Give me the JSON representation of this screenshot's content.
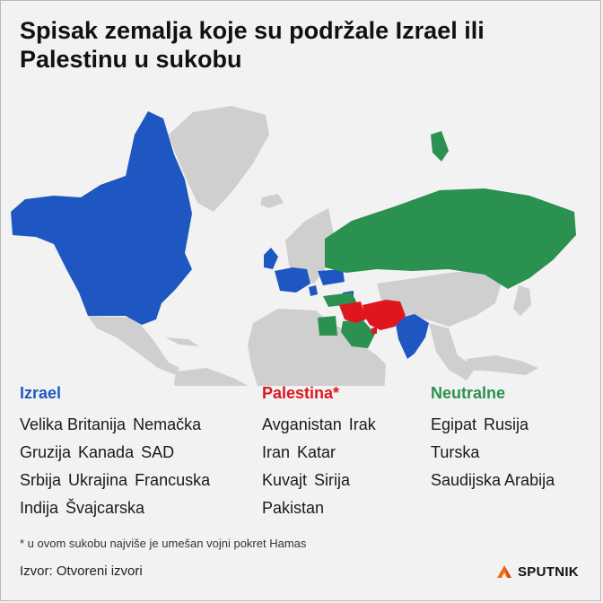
{
  "title": "Spisak zemalja koje su podržale Izrael ili Palestinu u sukobu",
  "colors": {
    "israel": "#1f57c2",
    "palestine": "#e0161e",
    "neutral": "#2b9150",
    "land": "#cfcfcf",
    "background": "#f2f2f2"
  },
  "map_legend": {
    "israel": {
      "heading": "Izrael",
      "rows": [
        [
          "Velika Britanija",
          "Nemačka"
        ],
        [
          "Gruzija",
          "Kanada",
          "SAD"
        ],
        [
          "Srbija",
          "Ukrajina",
          "Francuska"
        ],
        [
          "Indija",
          "Švajcarska"
        ]
      ]
    },
    "palestine": {
      "heading": "Palestina*",
      "rows": [
        [
          "Avganistan",
          "Irak"
        ],
        [
          "Iran",
          "Katar"
        ],
        [
          "Kuvajt",
          "Sirija"
        ],
        [
          "Pakistan"
        ]
      ]
    },
    "neutral": {
      "heading": "Neutralne",
      "rows": [
        [
          "Egipat",
          "Rusija"
        ],
        [
          "Turska"
        ],
        [
          "Saudijska Arabija"
        ]
      ]
    }
  },
  "footnote": "* u ovom sukobu najviše je umešan vojni pokret Hamas",
  "source": "Izvor: Otvoreni izvori",
  "brand": {
    "name": "SPUTNIK",
    "logo_icon": "sputnik-logo-icon"
  }
}
